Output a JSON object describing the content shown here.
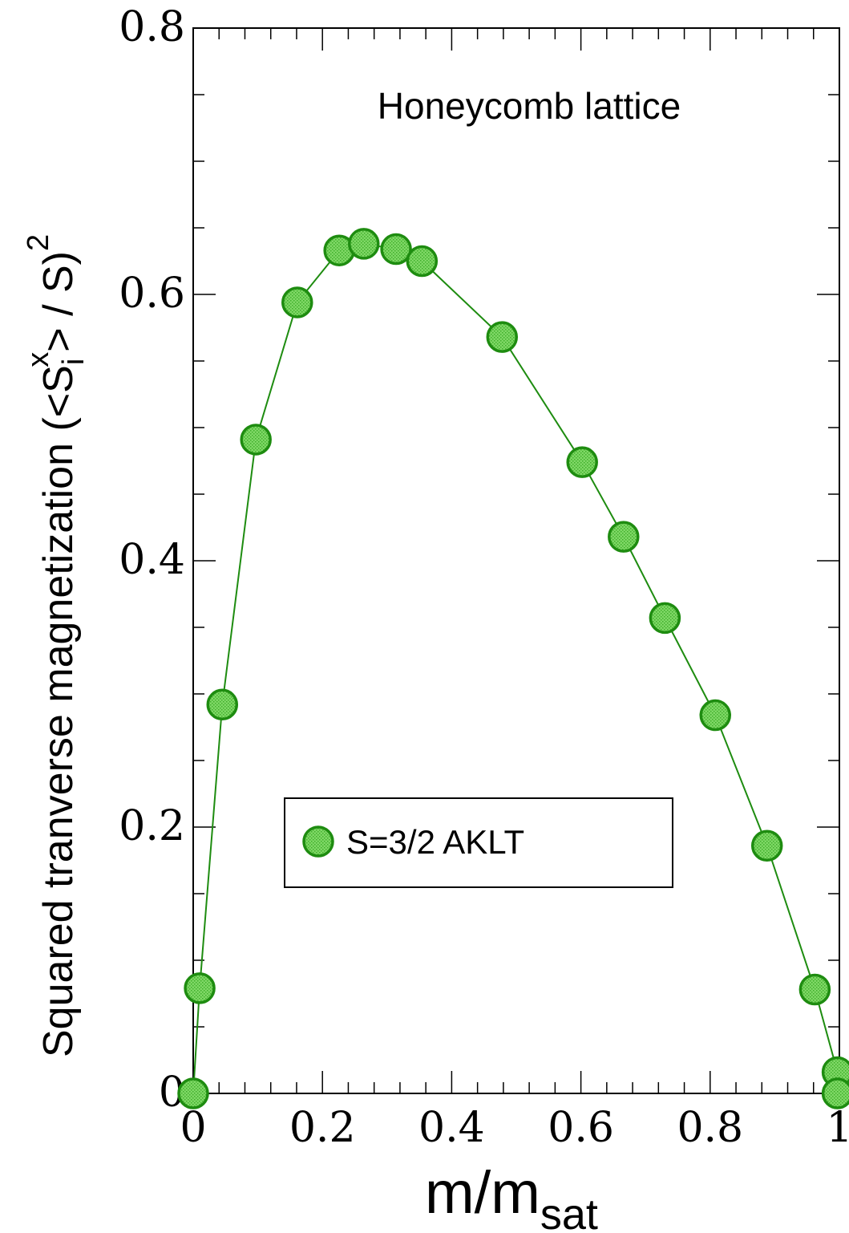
{
  "chart_data": {
    "type": "scatter",
    "title": "Honeycomb lattice",
    "xlabel": {
      "main": "m/m",
      "sub": "sat"
    },
    "ylabel": {
      "prefix": "Squared tranverse magnetization (<S",
      "sub": "i",
      "sup": "x",
      "mid": "> / S)",
      "sup2": "2"
    },
    "xlim": [
      0,
      1
    ],
    "ylim": [
      0,
      0.8
    ],
    "x_ticks": [
      "0",
      "0.2",
      "0.4",
      "0.6",
      "0.8",
      "1"
    ],
    "y_ticks": [
      "0",
      "0.2",
      "0.4",
      "0.6",
      "0.8"
    ],
    "legend_position": "center-left",
    "colors": {
      "line": "#1e8c10",
      "marker_fill": "#7fd866",
      "marker_edge": "#1e8c10"
    },
    "series": [
      {
        "name": "S=3/2 AKLT",
        "x": [
          0.0,
          0.01,
          0.045,
          0.097,
          0.161,
          0.226,
          0.264,
          0.314,
          0.354,
          0.478,
          0.602,
          0.666,
          0.73,
          0.808,
          0.888,
          0.962,
          0.997,
          0.997
        ],
        "y": [
          0.0,
          0.079,
          0.292,
          0.491,
          0.594,
          0.633,
          0.638,
          0.634,
          0.625,
          0.568,
          0.474,
          0.418,
          0.357,
          0.284,
          0.186,
          0.078,
          0.016,
          0.0
        ]
      }
    ]
  }
}
